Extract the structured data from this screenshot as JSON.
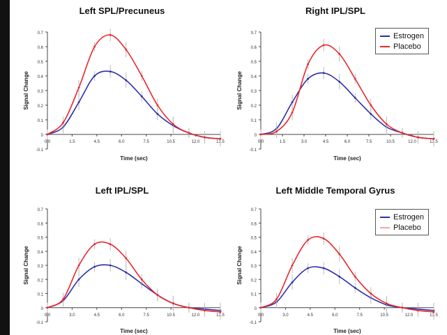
{
  "chart_data": [
    {
      "type": "line",
      "title": "Left SPL/Precuneus",
      "xlabel": "Time (sec)",
      "ylabel": "Signal Change",
      "xlim": [
        0,
        16.5
      ],
      "ylim": [
        -0.1,
        0.7
      ],
      "x_ticks": [
        "0.0",
        "1.5",
        "4.5",
        "6.0",
        "7.5",
        "10.5",
        "12.0",
        "13.5"
      ],
      "y_ticks": [
        "0.7",
        "0.6",
        "0.5",
        "0.4",
        "0.3",
        "0.2",
        "0.1",
        "0",
        "-0.1"
      ],
      "x": [
        0,
        1.5,
        3,
        4.5,
        6,
        7.5,
        9,
        10.5,
        12,
        13.5,
        15,
        16.5
      ],
      "series": [
        {
          "name": "Estrogen",
          "color": "#2b2fa8",
          "values": [
            0.0,
            0.05,
            0.22,
            0.4,
            0.43,
            0.37,
            0.26,
            0.14,
            0.06,
            0.01,
            -0.02,
            -0.03
          ]
        },
        {
          "name": "Placebo",
          "color": "#e8262a",
          "values": [
            0.0,
            0.08,
            0.32,
            0.6,
            0.68,
            0.58,
            0.4,
            0.2,
            0.07,
            0.01,
            -0.02,
            -0.03
          ]
        }
      ],
      "legend": "none"
    },
    {
      "type": "line",
      "title": "Right IPL/SPL",
      "xlabel": "Time (sec)",
      "ylabel": "Signal Change",
      "xlim": [
        0,
        16.5
      ],
      "ylim": [
        -0.1,
        0.7
      ],
      "x_ticks": [
        "0.0",
        "1.5",
        "3.0",
        "4.5",
        "6.0",
        "7.5",
        "10.5",
        "12.0",
        "13.5"
      ],
      "y_ticks": [
        "0.7",
        "0.6",
        "0.5",
        "0.4",
        "0.3",
        "0.2",
        "0.1",
        "0",
        "-0.1"
      ],
      "x": [
        0,
        1.5,
        3,
        4.5,
        6,
        7.5,
        9,
        10.5,
        12,
        13.5,
        15,
        16.5
      ],
      "series": [
        {
          "name": "Estrogen",
          "color": "#2b2fa8",
          "values": [
            0.0,
            0.04,
            0.22,
            0.38,
            0.42,
            0.36,
            0.25,
            0.14,
            0.05,
            0.01,
            -0.02,
            -0.03
          ]
        },
        {
          "name": "Placebo",
          "color": "#e8262a",
          "values": [
            0.0,
            0.02,
            0.15,
            0.48,
            0.61,
            0.55,
            0.38,
            0.2,
            0.07,
            0.01,
            -0.02,
            -0.03
          ]
        }
      ],
      "legend": "top-right"
    },
    {
      "type": "line",
      "title": "Left IPL/SPL",
      "xlabel": "Time (sec)",
      "ylabel": "Signal Change",
      "xlim": [
        0,
        16.5
      ],
      "ylim": [
        -0.1,
        0.7
      ],
      "x_ticks": [
        "0.0",
        "3.0",
        "4.5",
        "6.0",
        "7.5",
        "10.5",
        "12.0",
        "13.5"
      ],
      "y_ticks": [
        "0.7",
        "0.6",
        "0.5",
        "0.4",
        "0.3",
        "0.2",
        "0.1",
        "0",
        "-0.1"
      ],
      "x": [
        0,
        1.5,
        3,
        4.5,
        6,
        7.5,
        9,
        10.5,
        12,
        13.5,
        15,
        16.5
      ],
      "series": [
        {
          "name": "Estrogen",
          "color": "#2b2fa8",
          "values": [
            0.0,
            0.05,
            0.2,
            0.29,
            0.3,
            0.25,
            0.17,
            0.09,
            0.03,
            0.0,
            -0.01,
            -0.02
          ]
        },
        {
          "name": "Placebo",
          "color": "#e8262a",
          "values": [
            0.0,
            0.06,
            0.3,
            0.45,
            0.45,
            0.35,
            0.2,
            0.09,
            0.03,
            0.0,
            -0.02,
            -0.03
          ]
        }
      ],
      "legend": "none"
    },
    {
      "type": "line",
      "title": "Left Middle Temporal Gyrus",
      "xlabel": "Time (sec)",
      "ylabel": "Signal Change",
      "xlim": [
        0,
        16.5
      ],
      "ylim": [
        -0.1,
        0.7
      ],
      "x_ticks": [
        "0.0",
        "3.0",
        "4.5",
        "6.0",
        "7.5",
        "10.5",
        "12.0",
        "13.5"
      ],
      "y_ticks": [
        "0.7",
        "0.6",
        "0.5",
        "0.4",
        "0.3",
        "0.2",
        "0.1",
        "0",
        "-0.1"
      ],
      "x": [
        0,
        1.5,
        3,
        4.5,
        6,
        7.5,
        9,
        10.5,
        12,
        13.5,
        15,
        16.5
      ],
      "series": [
        {
          "name": "Estrogen",
          "color": "#2b2fa8",
          "values": [
            0.0,
            0.04,
            0.18,
            0.28,
            0.28,
            0.22,
            0.14,
            0.07,
            0.02,
            0.0,
            -0.01,
            -0.02
          ]
        },
        {
          "name": "Placebo",
          "color": "#e8262a",
          "values": [
            0.0,
            0.06,
            0.3,
            0.48,
            0.49,
            0.38,
            0.22,
            0.1,
            0.03,
            0.0,
            -0.02,
            -0.03
          ]
        }
      ],
      "legend": "top-right"
    }
  ]
}
